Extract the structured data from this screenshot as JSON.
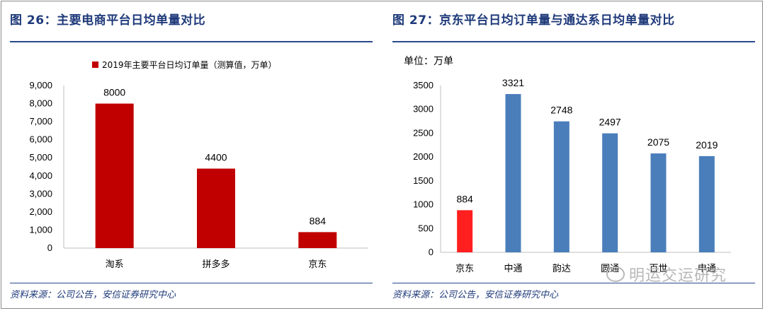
{
  "left": {
    "title": "图 26：主要电商平台日均单量对比",
    "source": "资料来源：公司公告，安信证券研究中心",
    "chart_data": {
      "type": "bar",
      "categories": [
        "淘系",
        "拼多多",
        "京东"
      ],
      "series": [
        {
          "name": "2019年主要平台日均订单量（测算值，万单）",
          "values": [
            8000,
            4400,
            884
          ]
        }
      ],
      "data_labels": [
        "8000",
        "4400",
        "884"
      ],
      "yticks": [
        "0",
        "1,000",
        "2,000",
        "3,000",
        "4,000",
        "5,000",
        "6,000",
        "7,000",
        "8,000",
        "9,000"
      ],
      "ylim": [
        0,
        9000
      ],
      "legend": "top",
      "color": "#c00000"
    }
  },
  "right": {
    "title": "图 27：京东平台日均订单量与通达系日均单量对比",
    "source": "资料来源：公司公告，安信证券研究中心",
    "unit_label": "单位：万单",
    "chart_data": {
      "type": "bar",
      "categories": [
        "京东",
        "中通",
        "韵达",
        "圆通",
        "百世",
        "申通"
      ],
      "values": [
        884,
        3321,
        2748,
        2497,
        2075,
        2019
      ],
      "data_labels": [
        "884",
        "3321",
        "2748",
        "2497",
        "2075",
        "2019"
      ],
      "yticks": [
        "0",
        "500",
        "1000",
        "1500",
        "2000",
        "2500",
        "3000",
        "3500"
      ],
      "ylim": [
        0,
        3500
      ],
      "colors": [
        "#ff1f1f",
        "#4a7ebb",
        "#4a7ebb",
        "#4a7ebb",
        "#4a7ebb",
        "#4a7ebb"
      ]
    }
  },
  "watermark": "明运交运研究"
}
